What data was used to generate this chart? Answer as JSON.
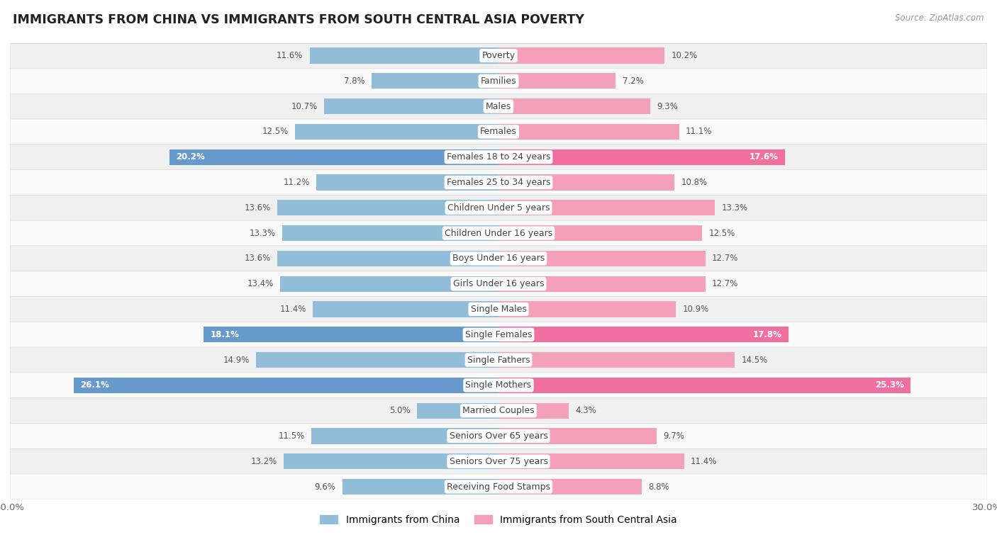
{
  "title": "IMMIGRANTS FROM CHINA VS IMMIGRANTS FROM SOUTH CENTRAL ASIA POVERTY",
  "source": "Source: ZipAtlas.com",
  "categories": [
    "Poverty",
    "Families",
    "Males",
    "Females",
    "Females 18 to 24 years",
    "Females 25 to 34 years",
    "Children Under 5 years",
    "Children Under 16 years",
    "Boys Under 16 years",
    "Girls Under 16 years",
    "Single Males",
    "Single Females",
    "Single Fathers",
    "Single Mothers",
    "Married Couples",
    "Seniors Over 65 years",
    "Seniors Over 75 years",
    "Receiving Food Stamps"
  ],
  "china_values": [
    11.6,
    7.8,
    10.7,
    12.5,
    20.2,
    11.2,
    13.6,
    13.3,
    13.6,
    13.4,
    11.4,
    18.1,
    14.9,
    26.1,
    5.0,
    11.5,
    13.2,
    9.6
  ],
  "asia_values": [
    10.2,
    7.2,
    9.3,
    11.1,
    17.6,
    10.8,
    13.3,
    12.5,
    12.7,
    12.7,
    10.9,
    17.8,
    14.5,
    25.3,
    4.3,
    9.7,
    11.4,
    8.8
  ],
  "china_color": "#92bdd9",
  "asia_color": "#f4a0b8",
  "china_highlight_color": "#6699cc",
  "asia_highlight_color": "#f06fa0",
  "highlight_rows": [
    4,
    11,
    13
  ],
  "xlim": 30.0,
  "bar_height": 0.62,
  "legend_china": "Immigrants from China",
  "legend_asia": "Immigrants from South Central Asia",
  "bg_color_alt": "#f0f0f0",
  "bg_color_main": "#fafafa",
  "label_fontsize": 9.0,
  "value_fontsize": 8.5,
  "title_fontsize": 12.5
}
